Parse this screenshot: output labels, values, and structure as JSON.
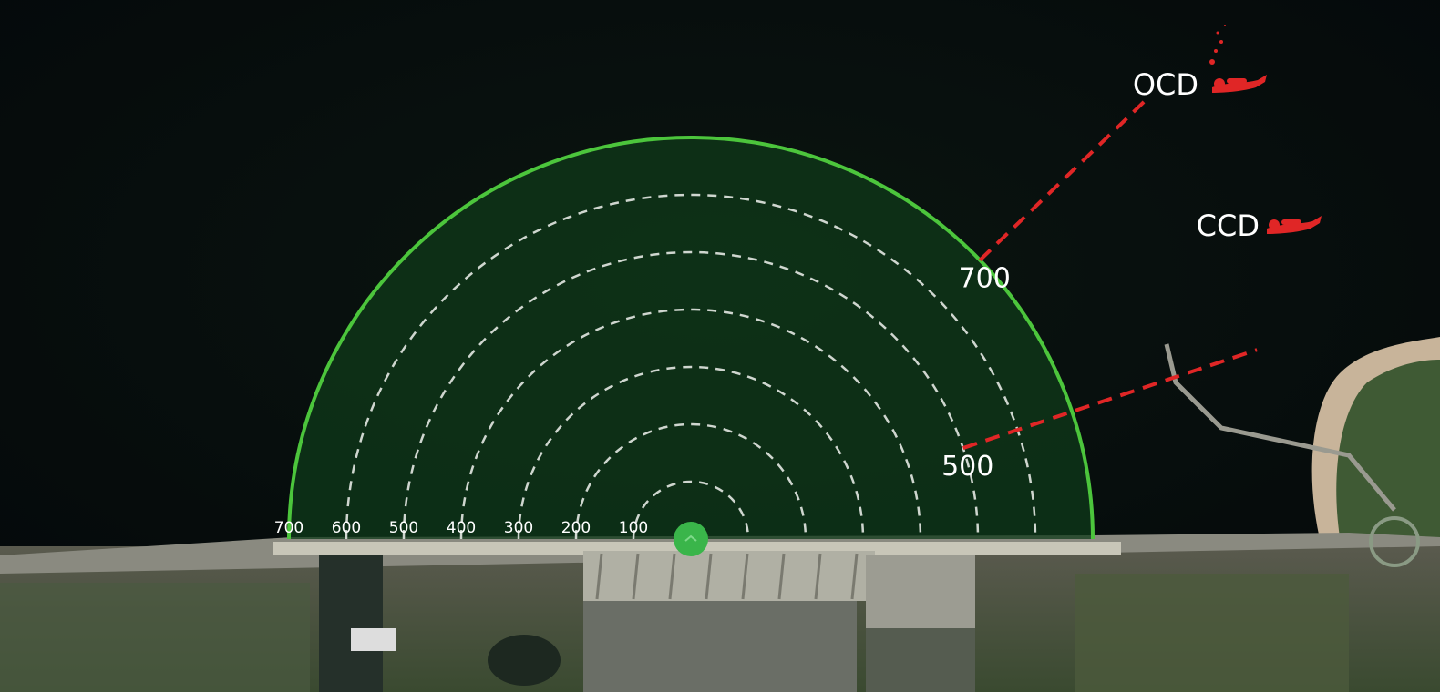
{
  "rings": [
    100,
    200,
    300,
    400,
    500,
    600,
    700
  ],
  "markers": [
    {
      "label": "OCD",
      "distance": 700
    },
    {
      "label": "CCD",
      "distance": 500
    }
  ]
}
